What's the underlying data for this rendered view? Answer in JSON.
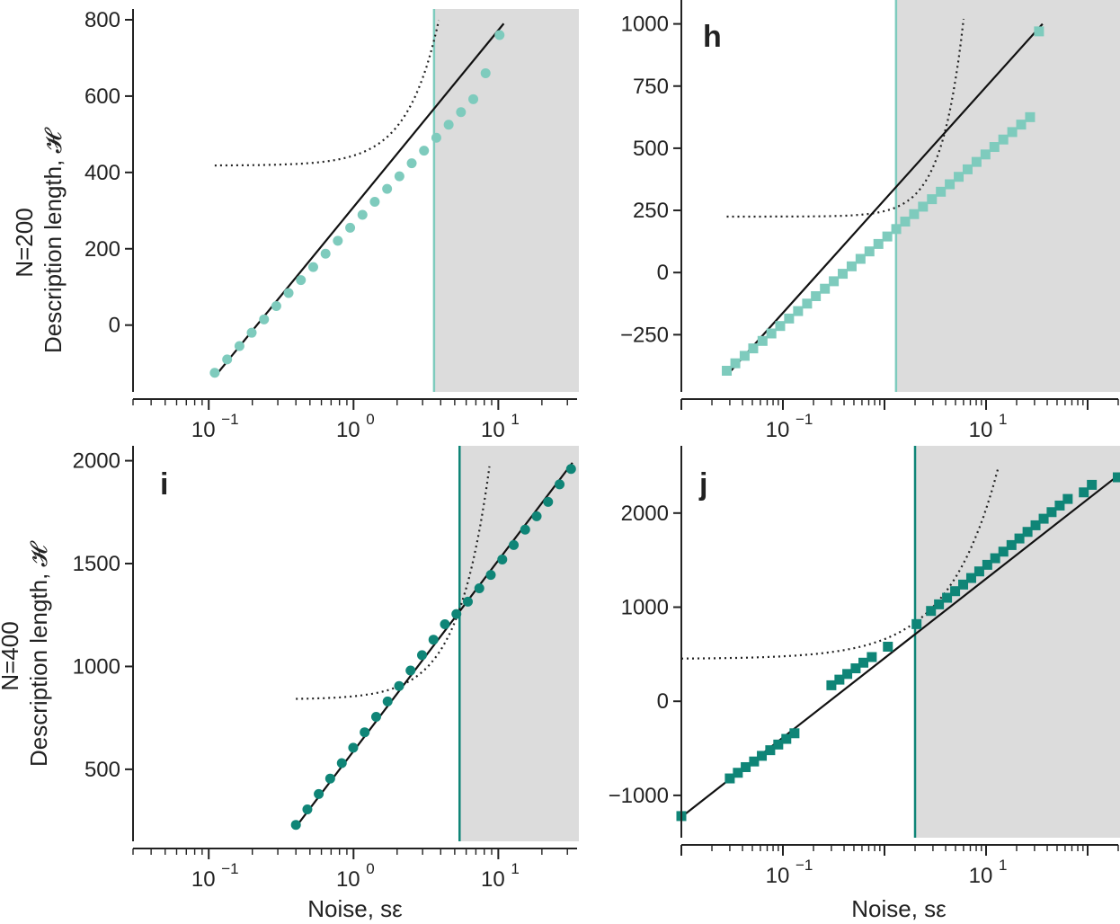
{
  "figure": {
    "row_labels": [
      {
        "line1": "N=200",
        "line2": "Description length, 𝓗"
      },
      {
        "line1": "N=400",
        "line2": "Description length, 𝓗"
      }
    ],
    "x_axis_label": "Noise, sε"
  },
  "colors": {
    "light_teal": "#7ecbbd",
    "dark_teal": "#0f8577",
    "shade": "#dcdcdc",
    "axis": "#222222"
  },
  "chart_data": [
    {
      "panel": "g",
      "letter": "",
      "type": "scatter",
      "xscale": "log",
      "xlim": [
        0.03,
        35
      ],
      "ylim": [
        -175,
        800
      ],
      "yticks": [
        0,
        200,
        400,
        600,
        800
      ],
      "ytick_labels": [
        "0",
        "200",
        "400",
        "600",
        "800"
      ],
      "xticks": [
        0.1,
        1,
        10
      ],
      "xtick_labels": [
        {
          "base": "10",
          "exp": "−1"
        },
        {
          "base": "10",
          "exp": "0"
        },
        {
          "base": "10",
          "exp": "1"
        }
      ],
      "marker": "circle",
      "color": "#7ecbbd",
      "threshold": 3.6,
      "points": {
        "x": [
          0.11,
          0.134,
          0.163,
          0.198,
          0.241,
          0.293,
          0.356,
          0.433,
          0.527,
          0.641,
          0.779,
          0.948,
          1.153,
          1.402,
          1.706,
          2.075,
          2.523,
          3.069,
          3.733,
          4.54,
          5.523,
          6.717,
          8.17,
          10.2
        ],
        "y": [
          -125,
          -90,
          -55,
          -20,
          15,
          50,
          84,
          118,
          152,
          187,
          221,
          255,
          289,
          323,
          357,
          390,
          424,
          457,
          491,
          525,
          558,
          592,
          660,
          760
        ]
      },
      "fit_line": {
        "x": [
          0.11,
          10.9
        ],
        "y": [
          -135,
          790
        ]
      },
      "dotted_curve": {
        "x_start": 0.11,
        "x_end": 10.9,
        "y_floor": 418,
        "coef": 26,
        "power": 1.98
      }
    },
    {
      "panel": "h",
      "letter": "h",
      "type": "scatter",
      "xscale": "log",
      "xlim": [
        0.01,
        200
      ],
      "ylim": [
        -480,
        1060
      ],
      "yticks": [
        -250,
        0,
        250,
        500,
        750,
        1000
      ],
      "ytick_labels": [
        "−250",
        "0",
        "250",
        "500",
        "750",
        "1000"
      ],
      "xticks": [
        0.1,
        10
      ],
      "xtick_labels": [
        {
          "base": "10",
          "exp": "−1"
        },
        {
          "base": "10",
          "exp": "1"
        }
      ],
      "marker": "square",
      "color": "#7ecbbd",
      "threshold": 1.3,
      "points": {
        "x": [
          0.028,
          0.034,
          0.042,
          0.051,
          0.063,
          0.077,
          0.094,
          0.115,
          0.141,
          0.173,
          0.211,
          0.259,
          0.317,
          0.388,
          0.475,
          0.581,
          0.711,
          0.871,
          1.066,
          1.305,
          1.598,
          1.956,
          2.394,
          2.931,
          3.588,
          4.392,
          5.377,
          6.583,
          8.058,
          9.865,
          12.08,
          14.78,
          18.1,
          22.15,
          27.12,
          33.2
        ],
        "y": [
          -395,
          -365,
          -335,
          -305,
          -275,
          -245,
          -215,
          -185,
          -155,
          -125,
          -95,
          -65,
          -35,
          -5,
          25,
          55,
          85,
          115,
          145,
          175,
          205,
          235,
          265,
          295,
          325,
          355,
          385,
          415,
          445,
          475,
          505,
          535,
          565,
          595,
          625,
          970
        ]
      },
      "fit_line": {
        "x": [
          0.03,
          36
        ],
        "y": [
          -400,
          1000
        ]
      },
      "dotted_curve": {
        "x_start": 0.028,
        "x_end": 36,
        "y_floor": 225,
        "coef": 22,
        "power": 2.0
      }
    },
    {
      "panel": "i",
      "letter": "i",
      "type": "scatter",
      "xscale": "log",
      "xlim": [
        0.03,
        35
      ],
      "ylim": [
        150,
        2020
      ],
      "yticks": [
        500,
        1000,
        1500,
        2000
      ],
      "ytick_labels": [
        "500",
        "1000",
        "1500",
        "2000"
      ],
      "xticks": [
        0.1,
        1,
        10
      ],
      "xtick_labels": [
        {
          "base": "10",
          "exp": "−1"
        },
        {
          "base": "10",
          "exp": "0"
        },
        {
          "base": "10",
          "exp": "1"
        }
      ],
      "marker": "circle",
      "color": "#0f8577",
      "threshold": 5.4,
      "points": {
        "x": [
          0.4,
          0.48,
          0.575,
          0.69,
          0.83,
          0.995,
          1.194,
          1.433,
          1.72,
          2.064,
          2.476,
          2.972,
          3.566,
          4.279,
          5.135,
          6.162,
          7.394,
          8.873,
          10.65,
          12.78,
          15.33,
          18.4,
          22.08,
          26.5,
          31.8
        ],
        "y": [
          230,
          305,
          380,
          455,
          530,
          605,
          680,
          755,
          830,
          905,
          980,
          1055,
          1130,
          1205,
          1255,
          1315,
          1380,
          1445,
          1520,
          1590,
          1665,
          1730,
          1800,
          1885,
          1960
        ]
      },
      "fit_line": {
        "x": [
          0.4,
          32.5
        ],
        "y": [
          220,
          1990
        ]
      },
      "dotted_curve": {
        "x_start": 0.4,
        "x_end": 32.5,
        "y_floor": 840,
        "coef": 15,
        "power": 2.0
      }
    },
    {
      "panel": "j",
      "letter": "j",
      "type": "scatter",
      "xscale": "log",
      "xlim": [
        0.01,
        200
      ],
      "ylim": [
        -1450,
        2600
      ],
      "yticks": [
        -1000,
        0,
        1000,
        2000
      ],
      "ytick_labels": [
        "−1000",
        "0",
        "1000",
        "2000"
      ],
      "xticks": [
        0.1,
        10
      ],
      "xtick_labels": [
        {
          "base": "10",
          "exp": "−1"
        },
        {
          "base": "10",
          "exp": "1"
        }
      ],
      "marker": "square",
      "color": "#0f8577",
      "threshold": 2.0,
      "points": {
        "x": [
          0.01,
          0.03,
          0.036,
          0.043,
          0.052,
          0.062,
          0.075,
          0.09,
          0.108,
          0.13,
          0.3,
          0.36,
          0.43,
          0.52,
          0.62,
          0.75,
          1.08,
          2.07,
          2.87,
          3.44,
          4.13,
          4.96,
          5.95,
          7.14,
          8.57,
          10.28,
          12.3,
          14.8,
          17.8,
          21.3,
          25.6,
          30.7,
          36.9,
          44.2,
          53.1,
          63.7,
          91.7,
          110,
          198
        ],
        "y": [
          -1220,
          -820,
          -760,
          -700,
          -640,
          -580,
          -520,
          -460,
          -400,
          -340,
          170,
          230,
          290,
          350,
          410,
          470,
          580,
          820,
          960,
          1030,
          1100,
          1170,
          1240,
          1310,
          1380,
          1450,
          1520,
          1590,
          1660,
          1730,
          1800,
          1870,
          1940,
          2010,
          2080,
          2150,
          2220,
          2300,
          2380
        ]
      },
      "fit_line": {
        "x": [
          0.01,
          200
        ],
        "y": [
          -1230,
          2400
        ]
      },
      "dotted_curve": {
        "x_start": 0.01,
        "x_end": 200,
        "y_floor": 450,
        "coef": 210,
        "power": 0.88
      }
    }
  ]
}
